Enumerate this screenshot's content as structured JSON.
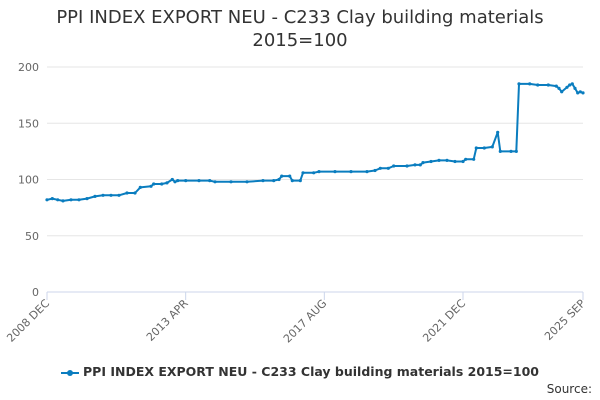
{
  "title_line1": "PPI INDEX EXPORT NEU - C233 Clay building materials",
  "title_line2": "2015=100",
  "legend_label": "PPI INDEX EXPORT NEU - C233 Clay building materials 2015=100",
  "source_label": "Source:",
  "colors": {
    "series": "#0a7dbf",
    "grid": "#e6e6e6",
    "axis": "#ccd6eb"
  },
  "chart_data": {
    "type": "line",
    "x_axis_type": "date",
    "title": "PPI INDEX EXPORT NEU - C233 Clay building materials 2015=100",
    "xlabel": "",
    "ylabel": "",
    "ylim": [
      0,
      200
    ],
    "yticks": [
      0,
      50,
      100,
      150,
      200
    ],
    "xlim": [
      "2008-12",
      "2025-09"
    ],
    "xticks": [
      {
        "label": "2008 DEC",
        "date": "2008-12"
      },
      {
        "label": "2013 APR",
        "date": "2013-04"
      },
      {
        "label": "2017 AUG",
        "date": "2017-08"
      },
      {
        "label": "2021 DEC",
        "date": "2021-12"
      },
      {
        "label": "2025 SEP",
        "date": "2025-09"
      }
    ],
    "grid": true,
    "legend": "bottom",
    "series": [
      {
        "name": "PPI INDEX EXPORT NEU - C233 Clay building materials 2015=100",
        "points": [
          [
            "2008-12",
            82
          ],
          [
            "2009-02",
            83
          ],
          [
            "2009-04",
            82
          ],
          [
            "2009-06",
            81
          ],
          [
            "2009-09",
            82
          ],
          [
            "2009-12",
            82
          ],
          [
            "2010-03",
            83
          ],
          [
            "2010-06",
            85
          ],
          [
            "2010-09",
            86
          ],
          [
            "2010-12",
            86
          ],
          [
            "2011-03",
            86
          ],
          [
            "2011-06",
            88
          ],
          [
            "2011-09",
            88
          ],
          [
            "2011-11",
            93
          ],
          [
            "2012-03",
            94
          ],
          [
            "2012-04",
            96
          ],
          [
            "2012-07",
            96
          ],
          [
            "2012-09",
            97
          ],
          [
            "2012-11",
            100
          ],
          [
            "2012-12",
            98
          ],
          [
            "2013-01",
            99
          ],
          [
            "2013-04",
            99
          ],
          [
            "2013-09",
            99
          ],
          [
            "2014-01",
            99
          ],
          [
            "2014-03",
            98
          ],
          [
            "2014-09",
            98
          ],
          [
            "2015-03",
            98
          ],
          [
            "2015-09",
            99
          ],
          [
            "2016-01",
            99
          ],
          [
            "2016-03",
            100
          ],
          [
            "2016-04",
            103
          ],
          [
            "2016-07",
            103
          ],
          [
            "2016-08",
            99
          ],
          [
            "2016-11",
            99
          ],
          [
            "2016-12",
            106
          ],
          [
            "2017-04",
            106
          ],
          [
            "2017-06",
            107
          ],
          [
            "2017-12",
            107
          ],
          [
            "2018-06",
            107
          ],
          [
            "2018-12",
            107
          ],
          [
            "2019-03",
            108
          ],
          [
            "2019-05",
            110
          ],
          [
            "2019-08",
            110
          ],
          [
            "2019-10",
            112
          ],
          [
            "2020-03",
            112
          ],
          [
            "2020-06",
            113
          ],
          [
            "2020-08",
            113
          ],
          [
            "2020-09",
            115
          ],
          [
            "2020-12",
            116
          ],
          [
            "2021-03",
            117
          ],
          [
            "2021-06",
            117
          ],
          [
            "2021-09",
            116
          ],
          [
            "2021-12",
            116
          ],
          [
            "2022-01",
            118
          ],
          [
            "2022-04",
            118
          ],
          [
            "2022-05",
            128
          ],
          [
            "2022-08",
            128
          ],
          [
            "2022-11",
            129
          ],
          [
            "2023-01",
            142
          ],
          [
            "2023-02",
            125
          ],
          [
            "2023-06",
            125
          ],
          [
            "2023-08",
            125
          ],
          [
            "2023-09",
            185
          ],
          [
            "2024-01",
            185
          ],
          [
            "2024-04",
            184
          ],
          [
            "2024-08",
            184
          ],
          [
            "2024-11",
            183
          ],
          [
            "2024-12",
            181
          ],
          [
            "2025-01",
            178
          ],
          [
            "2025-03",
            182
          ],
          [
            "2025-04",
            184
          ],
          [
            "2025-05",
            185
          ],
          [
            "2025-06",
            181
          ],
          [
            "2025-07",
            177
          ],
          [
            "2025-08",
            178
          ],
          [
            "2025-09",
            177
          ]
        ]
      }
    ]
  }
}
